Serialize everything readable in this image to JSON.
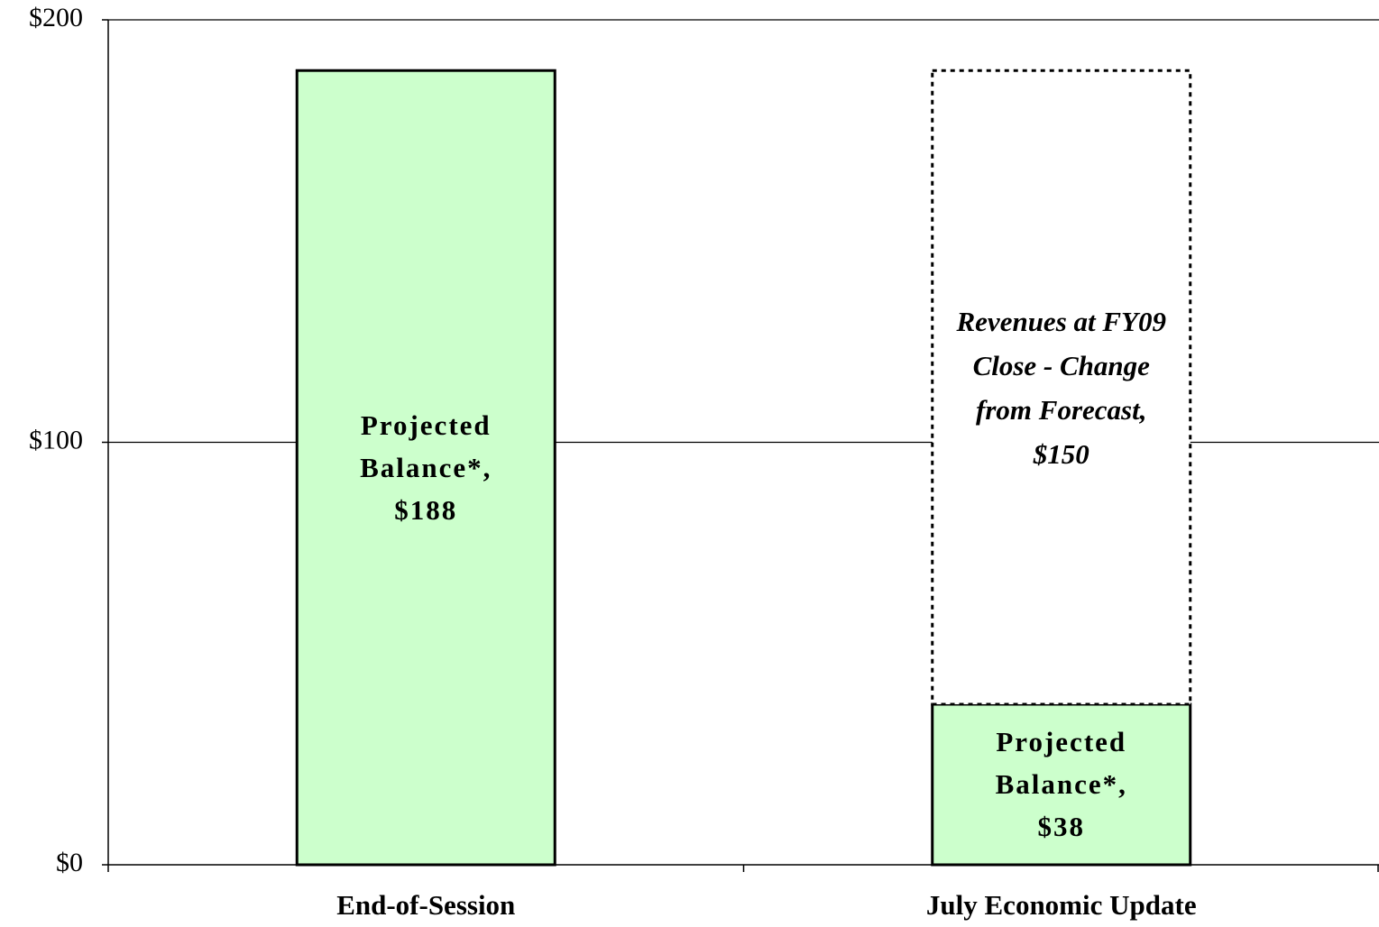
{
  "chart_data": {
    "type": "stacked-bar",
    "categories": [
      "End-of-Session",
      "July Economic Update"
    ],
    "series": [
      {
        "color": "#ccffcc",
        "border": "solid",
        "label_style": "bold",
        "values": [
          188,
          38
        ],
        "value_labels": [
          "Projected Balance*, $188",
          "Projected Balance*, $38"
        ]
      },
      {
        "color": "#ffffff",
        "border": "dotted",
        "label_style": "italic",
        "values": [
          null,
          150
        ],
        "value_labels": [
          null,
          "Revenues at FY09 Close - Change from Forecast, $150"
        ]
      }
    ],
    "ylim": [
      0,
      200
    ],
    "yticks": [
      {
        "value": 0,
        "label": "$0"
      },
      {
        "value": 100,
        "label": "$100"
      },
      {
        "value": 200,
        "label": "$200"
      }
    ],
    "grid": true
  }
}
